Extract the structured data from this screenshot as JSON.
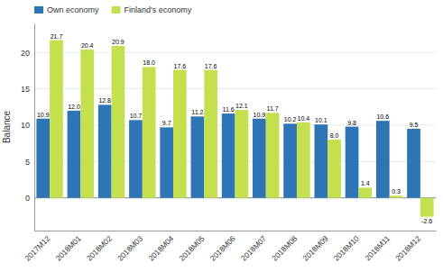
{
  "chart_data": {
    "type": "bar",
    "categories": [
      "2017M12",
      "2018M01",
      "2018M02",
      "2018M03",
      "2018M04",
      "2018M05",
      "2018M06",
      "2018M07",
      "2018M08",
      "2018M09",
      "2018M10",
      "2018M11",
      "2018M12"
    ],
    "series": [
      {
        "name": "Own economy",
        "color": "#2E75B6",
        "values": [
          10.9,
          12.0,
          12.8,
          10.7,
          9.7,
          11.2,
          11.6,
          10.9,
          10.2,
          10.1,
          9.8,
          10.6,
          9.5
        ],
        "value_labels": [
          "10.9",
          "12.0",
          "12.8",
          "10.7",
          "9.7",
          "11.2",
          "11.6",
          "10.9",
          "10.2",
          "10.1",
          "9.8",
          "10.6",
          "9.5"
        ]
      },
      {
        "name": "Finland's economy",
        "color": "#C5E04E",
        "values": [
          21.7,
          20.4,
          20.9,
          18.0,
          17.6,
          17.6,
          12.1,
          11.7,
          10.4,
          8.0,
          1.4,
          0.3,
          -2.6
        ],
        "value_labels": [
          "21.7",
          "20.4",
          "20.9",
          "18.0",
          "17.6",
          "17.6",
          "12.1",
          "11.7",
          "10.4",
          "8.0",
          "1.4",
          "0.3",
          "-2.6"
        ]
      }
    ],
    "ylabel": "Balance",
    "ylim": [
      -4.5,
      24
    ],
    "yticks": [
      0,
      5,
      10,
      15,
      20
    ],
    "grid": true,
    "legend": "upper left",
    "data_labels": true
  }
}
